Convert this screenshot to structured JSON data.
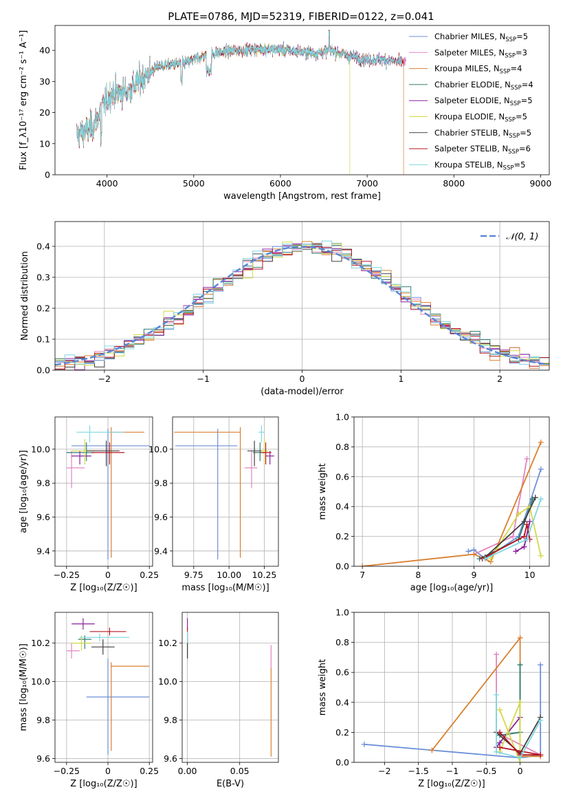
{
  "figure": {
    "title": "PLATE=0786, MJD=52319, FIBERID=0122, z=0.041",
    "model_names": [
      "Chabrier MILES",
      "Salpeter MILES",
      "Kroupa MILES",
      "Chabrier ELODIE",
      "Salpeter ELODIE",
      "Kroupa ELODIE",
      "Chabrier STELIB",
      "Salpeter STELIB",
      "Kroupa STELIB"
    ],
    "model_colors": [
      "#6b8fd8",
      "#e384c0",
      "#d97f2f",
      "#2c7b6e",
      "#8a1f9e",
      "#d4d846",
      "#404040",
      "#b41422",
      "#7fd6df"
    ]
  },
  "chart_data": [
    {
      "id": "spectrum",
      "type": "line",
      "xlabel": "wavelength [Angstrom, rest frame]",
      "ylabel": "Flux [f_λ10⁻¹⁷ erg cm⁻² s⁻¹ A⁻¹]",
      "xlim": [
        3400,
        9100
      ],
      "ylim": [
        0,
        48
      ],
      "xticks": [
        4000,
        5000,
        6000,
        7000,
        8000,
        9000
      ],
      "yticks": [
        0,
        10,
        20,
        30,
        40
      ],
      "legend_position": "top-right",
      "legend": [
        {
          "label": "Chabrier MILES, N",
          "sub": "SSP",
          "suffix": "=5"
        },
        {
          "label": "Salpeter MILES, N",
          "sub": "SSP",
          "suffix": "=3"
        },
        {
          "label": "Kroupa MILES, N",
          "sub": "SSP",
          "suffix": "=4"
        },
        {
          "label": "Chabrier ELODIE, N",
          "sub": "SSP",
          "suffix": "=4"
        },
        {
          "label": "Salpeter ELODIE, N",
          "sub": "SSP",
          "suffix": "=5"
        },
        {
          "label": "Kroupa ELODIE, N",
          "sub": "SSP",
          "suffix": "=5"
        },
        {
          "label": "Chabrier STELIB, N",
          "sub": "SSP",
          "suffix": "=5"
        },
        {
          "label": "Salpeter STELIB, N",
          "sub": "SSP",
          "suffix": "=6"
        },
        {
          "label": "Kroupa STELIB, N",
          "sub": "SSP",
          "suffix": "=5"
        }
      ],
      "wavelength_range": [
        3650,
        7450
      ],
      "continuum": [
        [
          3650,
          13
        ],
        [
          3750,
          14
        ],
        [
          3850,
          16
        ],
        [
          3950,
          22
        ],
        [
          4050,
          26
        ],
        [
          4250,
          27
        ],
        [
          4400,
          31
        ],
        [
          4600,
          35
        ],
        [
          4900,
          36
        ],
        [
          5200,
          39
        ],
        [
          5500,
          40
        ],
        [
          5800,
          40.5
        ],
        [
          6100,
          40
        ],
        [
          6400,
          39
        ],
        [
          6600,
          40
        ],
        [
          6800,
          38
        ],
        [
          7000,
          37
        ],
        [
          7200,
          37
        ],
        [
          7450,
          36
        ]
      ],
      "model_end_wavelengths": [
        7450,
        7450,
        7420,
        7400,
        7400,
        6800,
        7400,
        7420,
        7400
      ],
      "model_dropouts": [
        {
          "model": 5,
          "x": 6800
        },
        {
          "model": 2,
          "x": 7420
        }
      ]
    },
    {
      "id": "residuals",
      "type": "histogram",
      "xlabel": "(data-model)/error",
      "ylabel": "Normed distribution",
      "xlim": [
        -2.5,
        2.5
      ],
      "ylim": [
        0,
        0.48
      ],
      "xticks": [
        -2,
        -1,
        0,
        1,
        2
      ],
      "yticks": [
        0.0,
        0.1,
        0.2,
        0.3,
        0.4
      ],
      "grid": true,
      "bin_width": 0.1,
      "reference_curve": {
        "label": "𝒩(0, 1)",
        "mean": 0,
        "sigma": 1,
        "color": "#5b87d6"
      },
      "legend_position": "top-right"
    },
    {
      "id": "age_vs_Z",
      "type": "errorbar",
      "xlabel": "Z [log₁₀(Z/Z☉)]",
      "ylabel": "age  [log₁₀(age/yr)]",
      "xlim": [
        -0.32,
        0.27
      ],
      "ylim": [
        9.31,
        10.19
      ],
      "xticks": [
        -0.25,
        0.0,
        0.25
      ],
      "yticks": [
        9.4,
        9.6,
        9.8,
        10.0
      ],
      "grid": true,
      "points": [
        {
          "model": 0,
          "x": 0.0,
          "xerr": [
            0.22,
            0.25
          ],
          "y": 10.02,
          "yerr": [
            0.67,
            0.1
          ]
        },
        {
          "model": 1,
          "x": -0.22,
          "xerr": [
            0.03,
            0.08
          ],
          "y": 9.89,
          "yerr": [
            0.12,
            0.1
          ]
        },
        {
          "model": 2,
          "x": 0.02,
          "xerr": [
            0.02,
            0.2
          ],
          "y": 10.1,
          "yerr": [
            0.74,
            0.03
          ]
        },
        {
          "model": 3,
          "x": -0.13,
          "xerr": [
            0.12,
            0.05
          ],
          "y": 9.98,
          "yerr": [
            0.05,
            0.06
          ]
        },
        {
          "model": 4,
          "x": -0.17,
          "xerr": [
            0.05,
            0.07
          ],
          "y": 9.96,
          "yerr": [
            0.05,
            0.03
          ]
        },
        {
          "model": 5,
          "x": -0.14,
          "xerr": [
            0.08,
            0.06
          ],
          "y": 9.99,
          "yerr": [
            0.08,
            0.07
          ]
        },
        {
          "model": 6,
          "x": -0.01,
          "xerr": [
            0.12,
            0.08
          ],
          "y": 9.99,
          "yerr": [
            0.09,
            0.06
          ]
        },
        {
          "model": 7,
          "x": 0.01,
          "xerr": [
            0.11,
            0.09
          ],
          "y": 9.98,
          "yerr": [
            0.07,
            0.06
          ]
        },
        {
          "model": 8,
          "x": -0.11,
          "xerr": [
            0.08,
            0.21
          ],
          "y": 10.1,
          "yerr": [
            0.06,
            0.04
          ]
        }
      ]
    },
    {
      "id": "age_vs_mass",
      "type": "errorbar",
      "xlabel": "mass [log₁₀(M/M☉)]",
      "ylabel": "",
      "xlim": [
        9.6,
        10.35
      ],
      "ylim": [
        9.31,
        10.19
      ],
      "xticks": [
        9.75,
        10.0,
        10.25
      ],
      "xticklabels": [
        "9.75",
        "10.00",
        "10.25"
      ],
      "yticks": [
        9.4,
        9.6,
        9.8,
        10.0
      ],
      "grid": true,
      "points": [
        {
          "model": 0,
          "x": 9.92,
          "xerr": [
            0.3,
            0.14
          ],
          "y": 10.02,
          "yerr": [
            0.67,
            0.1
          ]
        },
        {
          "model": 1,
          "x": 10.16,
          "xerr": [
            0.05,
            0.04
          ],
          "y": 9.89,
          "yerr": [
            0.12,
            0.1
          ]
        },
        {
          "model": 2,
          "x": 10.08,
          "xerr": [
            0.47,
            0.0
          ],
          "y": 10.1,
          "yerr": [
            0.74,
            0.03
          ]
        },
        {
          "model": 3,
          "x": 10.22,
          "xerr": [
            0.05,
            0.03
          ],
          "y": 9.98,
          "yerr": [
            0.05,
            0.06
          ]
        },
        {
          "model": 4,
          "x": 10.29,
          "xerr": [
            0.03,
            0.03
          ],
          "y": 9.96,
          "yerr": [
            0.05,
            0.03
          ]
        },
        {
          "model": 5,
          "x": 10.25,
          "xerr": [
            0.03,
            0.03
          ],
          "y": 9.99,
          "yerr": [
            0.08,
            0.07
          ]
        },
        {
          "model": 6,
          "x": 10.18,
          "xerr": [
            0.05,
            0.05
          ],
          "y": 9.99,
          "yerr": [
            0.09,
            0.06
          ]
        },
        {
          "model": 7,
          "x": 10.26,
          "xerr": [
            0.04,
            0.04
          ],
          "y": 9.98,
          "yerr": [
            0.07,
            0.06
          ]
        },
        {
          "model": 8,
          "x": 10.23,
          "xerr": [
            0.02,
            0.02
          ],
          "y": 10.1,
          "yerr": [
            0.06,
            0.04
          ]
        }
      ]
    },
    {
      "id": "mass_weight_vs_age",
      "type": "line",
      "xlabel": "age  [log₁₀(age/yr)]",
      "ylabel": "mass weight",
      "xlim": [
        6.85,
        10.35
      ],
      "ylim": [
        0,
        1
      ],
      "xticks": [
        7,
        8,
        9,
        10
      ],
      "yticks": [
        0.0,
        0.2,
        0.4,
        0.6,
        0.8,
        1.0
      ],
      "grid": true,
      "series": [
        {
          "model": 0,
          "x": [
            8.9,
            9.0,
            9.2,
            9.8,
            10.2
          ],
          "y": [
            0.1,
            0.11,
            0.05,
            0.2,
            0.65
          ]
        },
        {
          "model": 1,
          "x": [
            9.0,
            9.7,
            9.95
          ],
          "y": [
            0.08,
            0.2,
            0.72
          ]
        },
        {
          "model": 2,
          "x": [
            7.0,
            9.0,
            9.3,
            10.2
          ],
          "y": [
            0.0,
            0.08,
            0.03,
            0.83
          ]
        },
        {
          "model": 3,
          "x": [
            9.1,
            9.8,
            10.05
          ],
          "y": [
            0.05,
            0.18,
            0.45
          ]
        },
        {
          "model": 4,
          "x": [
            9.75,
            9.9,
            10.0
          ],
          "y": [
            0.1,
            0.13,
            0.3
          ]
        },
        {
          "model": 5,
          "x": [
            9.3,
            9.8,
            10.0,
            10.2
          ],
          "y": [
            0.05,
            0.35,
            0.4,
            0.07
          ]
        },
        {
          "model": 6,
          "x": [
            9.2,
            9.9,
            10.1
          ],
          "y": [
            0.06,
            0.3,
            0.46
          ]
        },
        {
          "model": 7,
          "x": [
            9.15,
            9.9,
            9.95,
            10.0
          ],
          "y": [
            0.05,
            0.2,
            0.28,
            0.18
          ]
        },
        {
          "model": 8,
          "x": [
            9.2,
            9.95,
            10.2
          ],
          "y": [
            0.05,
            0.18,
            0.45
          ]
        }
      ]
    },
    {
      "id": "mass_vs_Z",
      "type": "errorbar",
      "xlabel": "Z [log₁₀(Z/Z☉)]",
      "ylabel": "mass [log₁₀(M/M☉)]",
      "xlim": [
        -0.32,
        0.27
      ],
      "ylim": [
        9.58,
        10.36
      ],
      "xticks": [
        -0.25,
        0.0,
        0.25
      ],
      "yticks": [
        9.6,
        9.8,
        10.0,
        10.2
      ],
      "grid": true,
      "points": [
        {
          "model": 0,
          "x": 0.0,
          "xerr": [
            0.13,
            0.25
          ],
          "y": 9.92,
          "yerr": [
            0.3,
            0.2
          ]
        },
        {
          "model": 1,
          "x": -0.22,
          "xerr": [
            0.03,
            0.05
          ],
          "y": 10.16,
          "yerr": [
            0.04,
            0.04
          ]
        },
        {
          "model": 2,
          "x": 0.02,
          "xerr": [
            0.0,
            0.23
          ],
          "y": 10.08,
          "yerr": [
            0.44,
            0.02
          ]
        },
        {
          "model": 3,
          "x": -0.14,
          "xerr": [
            0.04,
            0.04
          ],
          "y": 10.22,
          "yerr": [
            0.05,
            0.02
          ]
        },
        {
          "model": 4,
          "x": -0.15,
          "xerr": [
            0.07,
            0.07
          ],
          "y": 10.3,
          "yerr": [
            0.03,
            0.03
          ]
        },
        {
          "model": 5,
          "x": -0.16,
          "xerr": [
            0.06,
            0.06
          ],
          "y": 10.2,
          "yerr": [
            0.04,
            0.04
          ]
        },
        {
          "model": 6,
          "x": -0.03,
          "xerr": [
            0.07,
            0.07
          ],
          "y": 10.18,
          "yerr": [
            0.04,
            0.04
          ]
        },
        {
          "model": 7,
          "x": 0.01,
          "xerr": [
            0.12,
            0.1
          ],
          "y": 10.26,
          "yerr": [
            0.02,
            0.02
          ]
        },
        {
          "model": 8,
          "x": -0.05,
          "xerr": [
            0.12,
            0.18
          ],
          "y": 10.23,
          "yerr": [
            0.02,
            0.02
          ]
        }
      ]
    },
    {
      "id": "mass_vs_ebv",
      "type": "errorbar",
      "xlabel": "E(B-V)",
      "ylabel": "",
      "xlim": [
        -0.005,
        0.087
      ],
      "ylim": [
        9.58,
        10.36
      ],
      "xticks": [
        0.0,
        0.05
      ],
      "xticklabels": [
        "0.00",
        "0.05"
      ],
      "yticks": [
        9.6,
        9.8,
        10.0,
        10.2
      ],
      "grid": true,
      "points": [
        {
          "model": 0,
          "x": 0.0,
          "xerr": [
            0,
            0
          ],
          "y": 10.22,
          "yerr": [
            0.03,
            0.03
          ]
        },
        {
          "model": 1,
          "x": 0.08,
          "xerr": [
            0,
            0
          ],
          "y": 10.1,
          "yerr": [
            0.03,
            0.09
          ]
        },
        {
          "model": 2,
          "x": 0.08,
          "xerr": [
            0,
            0
          ],
          "y": 9.85,
          "yerr": [
            0.24,
            0.22
          ]
        },
        {
          "model": 3,
          "x": 0.0,
          "xerr": [
            0,
            0
          ],
          "y": 10.2,
          "yerr": [
            0.08,
            0.04
          ]
        },
        {
          "model": 4,
          "x": 0.0,
          "xerr": [
            0,
            0
          ],
          "y": 10.3,
          "yerr": [
            0.03,
            0.03
          ]
        },
        {
          "model": 5,
          "x": 0.0,
          "xerr": [
            0,
            0
          ],
          "y": 10.18,
          "yerr": [
            0.04,
            0.04
          ]
        },
        {
          "model": 6,
          "x": 0.0,
          "xerr": [
            0,
            0
          ],
          "y": 10.18,
          "yerr": [
            0.06,
            0.04
          ]
        },
        {
          "model": 7,
          "x": 0.0,
          "xerr": [
            0,
            0
          ],
          "y": 10.26,
          "yerr": [
            0.02,
            0.02
          ]
        },
        {
          "model": 8,
          "x": 0.0,
          "xerr": [
            0,
            0
          ],
          "y": 10.23,
          "yerr": [
            0.03,
            0.03
          ]
        }
      ]
    },
    {
      "id": "mass_weight_vs_Z",
      "type": "line",
      "xlabel": "Z [log₁₀(Z/Z☉)]",
      "ylabel": "mass weight",
      "xlim": [
        -2.45,
        0.43
      ],
      "ylim": [
        0,
        1
      ],
      "xticks": [
        -2.0,
        -1.5,
        -1.0,
        -0.5,
        0.0
      ],
      "yticks": [
        0.0,
        0.2,
        0.4,
        0.6,
        0.8,
        1.0
      ],
      "grid": true,
      "series": [
        {
          "model": 0,
          "x": [
            -2.3,
            0.0,
            0.3,
            0.3
          ],
          "y": [
            0.12,
            0.03,
            0.05,
            0.65
          ]
        },
        {
          "model": 1,
          "x": [
            -0.35,
            -0.35,
            0.3
          ],
          "y": [
            0.72,
            0.2,
            0.05
          ]
        },
        {
          "model": 2,
          "x": [
            -1.3,
            0.0,
            0.0,
            0.3
          ],
          "y": [
            0.08,
            0.83,
            0.04,
            0.04
          ]
        },
        {
          "model": 3,
          "x": [
            -0.3,
            0.0,
            0.0
          ],
          "y": [
            0.18,
            0.2,
            0.65
          ]
        },
        {
          "model": 4,
          "x": [
            -0.35,
            -0.3,
            0.0
          ],
          "y": [
            0.1,
            0.13,
            0.3
          ]
        },
        {
          "model": 5,
          "x": [
            -0.3,
            0.0,
            0.0,
            -0.3
          ],
          "y": [
            0.07,
            0.4,
            0.0,
            0.35
          ]
        },
        {
          "model": 6,
          "x": [
            -0.35,
            0.0,
            0.3
          ],
          "y": [
            0.2,
            0.06,
            0.3
          ]
        },
        {
          "model": 7,
          "x": [
            -0.3,
            0.0,
            0.3,
            -0.3
          ],
          "y": [
            0.2,
            0.05,
            0.05,
            0.1
          ]
        },
        {
          "model": 8,
          "x": [
            -0.35,
            -0.35,
            0.0,
            0.3
          ],
          "y": [
            0.45,
            0.07,
            0.03,
            0.28
          ]
        }
      ]
    }
  ]
}
